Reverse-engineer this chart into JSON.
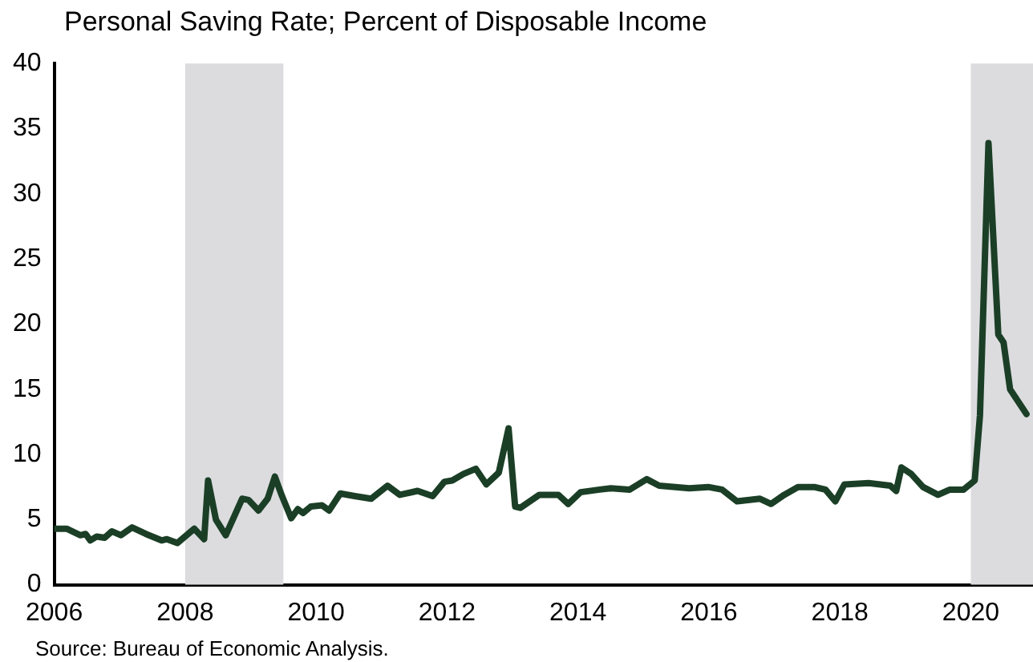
{
  "chart_data": {
    "type": "line",
    "title": "Personal Saving Rate; Percent of Disposable Income",
    "annotations": [
      "Source: Bureau of Economic Analysis."
    ],
    "x": [
      2006.02,
      2006.19,
      2006.4,
      2006.48,
      2006.55,
      2006.65,
      2006.77,
      2006.88,
      2007.02,
      2007.19,
      2007.4,
      2007.64,
      2007.72,
      2007.88,
      2008.14,
      2008.29,
      2008.35,
      2008.47,
      2008.62,
      2008.87,
      2008.97,
      2009.12,
      2009.26,
      2009.37,
      2009.48,
      2009.62,
      2009.72,
      2009.8,
      2009.92,
      2010.09,
      2010.2,
      2010.37,
      2010.59,
      2010.84,
      2011.09,
      2011.28,
      2011.55,
      2011.78,
      2011.96,
      2012.08,
      2012.25,
      2012.44,
      2012.6,
      2012.79,
      2012.94,
      2013.04,
      2013.12,
      2013.41,
      2013.7,
      2013.85,
      2014.04,
      2014.33,
      2014.5,
      2014.79,
      2015.05,
      2015.24,
      2015.7,
      2015.99,
      2016.2,
      2016.43,
      2016.78,
      2016.95,
      2017.15,
      2017.36,
      2017.61,
      2017.78,
      2017.93,
      2018.07,
      2018.44,
      2018.77,
      2018.86,
      2018.94,
      2019.09,
      2019.27,
      2019.5,
      2019.68,
      2019.89,
      2020.06,
      2020.14,
      2020.27,
      2020.42,
      2020.5,
      2020.6,
      2020.85
    ],
    "series": [
      {
        "color": "#1b3f26",
        "values": [
          4.3,
          4.3,
          3.8,
          3.9,
          3.4,
          3.7,
          3.6,
          4.1,
          3.8,
          4.4,
          3.9,
          3.4,
          3.5,
          3.2,
          4.3,
          3.5,
          8.0,
          5.0,
          3.8,
          6.6,
          6.5,
          5.7,
          6.6,
          8.3,
          6.8,
          5.1,
          5.8,
          5.5,
          6.0,
          6.1,
          5.7,
          7.0,
          6.8,
          6.6,
          7.6,
          6.9,
          7.2,
          6.8,
          7.9,
          8.0,
          8.5,
          8.9,
          7.7,
          8.6,
          12.0,
          6.0,
          5.9,
          6.9,
          6.9,
          6.2,
          7.1,
          7.3,
          7.4,
          7.3,
          8.1,
          7.6,
          7.4,
          7.5,
          7.3,
          6.4,
          6.6,
          6.2,
          6.9,
          7.5,
          7.5,
          7.3,
          6.4,
          7.7,
          7.8,
          7.6,
          7.2,
          9.0,
          8.5,
          7.5,
          6.9,
          7.3,
          7.3,
          8.0,
          13.0,
          33.9,
          19.2,
          18.6,
          15.0,
          13.1
        ]
      }
    ],
    "xlim": [
      2006,
      2020.95
    ],
    "xticks": [
      2006,
      2008,
      2010,
      2012,
      2014,
      2016,
      2018,
      2020
    ],
    "ylim": [
      0,
      40
    ],
    "yticks": [
      0,
      5,
      10,
      15,
      20,
      25,
      30,
      35,
      40
    ],
    "bands": [
      {
        "axis": "x",
        "from": 2008,
        "to": 2009.5,
        "color": "#dcdcdf"
      },
      {
        "axis": "x",
        "from": 2020,
        "to": 2020.95,
        "color": "#dcdcdf"
      }
    ],
    "grid": false,
    "legend": false,
    "marker": "none",
    "line_style": "solid"
  }
}
